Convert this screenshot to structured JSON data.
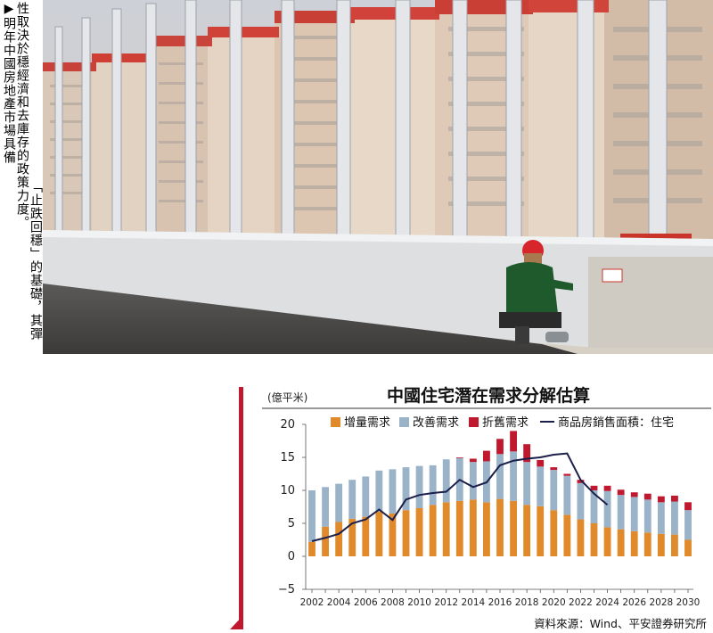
{
  "caption": {
    "columns": [
      "▶明年中國房地產市場具備",
      "性取決於穩經濟和去庫存的政策力度。",
      "「止跌回穩」的基礎，其彈"
    ]
  },
  "photo": {
    "description_icon": "construction-worker-bridge-photo"
  },
  "chart": {
    "unit_label": "(億平米)",
    "title": "中國住宅潛在需求分解估算",
    "source": "資料來源：Wind、平安證券研究所",
    "colors": {
      "increment": "#e08a2c",
      "improvement": "#9ab3c9",
      "demolition": "#c0182e",
      "line": "#1b1f4a",
      "accent": "#c0182e"
    }
  },
  "chart_data": {
    "type": "bar",
    "stacked": true,
    "title": "中國住宅潛在需求分解估算",
    "ylabel": "(億平米)",
    "ylim": [
      -5,
      20
    ],
    "yticks": [
      -5,
      0,
      5,
      10,
      15,
      20
    ],
    "categories": [
      "2002",
      "2003",
      "2004",
      "2005",
      "2006",
      "2007",
      "2008",
      "2009",
      "2010",
      "2011",
      "2012",
      "2013",
      "2014",
      "2015",
      "2016",
      "2017",
      "2018",
      "2019",
      "2020",
      "2021",
      "2022",
      "2023",
      "2024",
      "2025",
      "2026",
      "2027",
      "2028",
      "2029",
      "2030"
    ],
    "xtick_labels": [
      "2002",
      "2004",
      "2006",
      "2008",
      "2010",
      "2012",
      "2014",
      "2016",
      "2018",
      "2020",
      "2022",
      "2024",
      "2026",
      "2028",
      "2030"
    ],
    "series": [
      {
        "name": "增量需求",
        "values": [
          2.2,
          4.5,
          5.2,
          5.7,
          6.0,
          6.8,
          6.5,
          7.0,
          7.3,
          7.8,
          8.2,
          8.4,
          8.6,
          8.2,
          8.7,
          8.4,
          7.8,
          7.6,
          7.0,
          6.3,
          5.6,
          5.0,
          4.4,
          4.1,
          3.8,
          3.6,
          3.4,
          3.3,
          2.5
        ]
      },
      {
        "name": "改善需求",
        "values": [
          7.8,
          6.0,
          5.8,
          5.9,
          6.1,
          6.2,
          6.7,
          6.5,
          6.4,
          6.0,
          6.5,
          6.5,
          5.7,
          6.2,
          6.8,
          7.5,
          6.5,
          6.0,
          6.1,
          5.9,
          5.5,
          5.0,
          5.5,
          5.2,
          5.2,
          5.0,
          4.8,
          5.0,
          4.5
        ]
      },
      {
        "name": "折舊需求",
        "values": [
          0,
          0,
          0,
          0,
          0,
          0,
          0,
          0,
          0,
          0,
          0,
          0.1,
          0.5,
          1.6,
          2.3,
          3.1,
          2.7,
          1.0,
          0.4,
          0.3,
          0.5,
          0.7,
          0.8,
          0.8,
          0.7,
          0.9,
          0.9,
          0.9,
          1.2
        ]
      },
      {
        "name": "商品房銷售面積：住宅",
        "type": "line",
        "values": [
          2.3,
          2.8,
          3.4,
          5.0,
          5.6,
          7.1,
          5.5,
          8.6,
          9.3,
          9.6,
          9.8,
          11.6,
          10.5,
          11.2,
          13.8,
          14.5,
          14.8,
          15.0,
          15.4,
          15.6,
          11.6,
          9.5,
          7.8,
          null,
          null,
          null,
          null,
          null,
          null
        ]
      }
    ],
    "legend": [
      "增量需求",
      "改善需求",
      "折舊需求",
      "商品房銷售面積：住宅"
    ],
    "legend_position": "top",
    "grid": false
  }
}
